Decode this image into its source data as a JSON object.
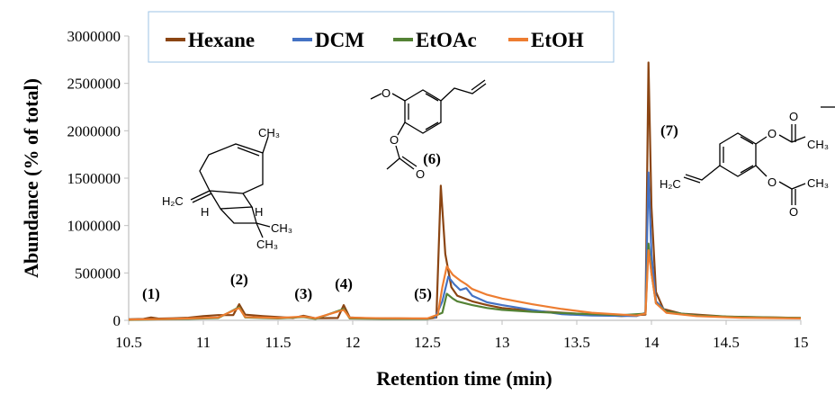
{
  "colors": {
    "Hexane": "#8B4513",
    "DCM": "#4472C4",
    "EtOAc": "#548235",
    "EtOH": "#ED7D31",
    "legend_border": "#9DC3E6",
    "axis": "#bfbfbf"
  },
  "chart_data": {
    "type": "line",
    "xlabel": "Retention time (min)",
    "ylabel": "Abundance (% of total)",
    "xlim": [
      10.5,
      15
    ],
    "ylim": [
      0,
      3000000
    ],
    "x_ticks": [
      "10.5",
      "11",
      "11.5",
      "12",
      "12.5",
      "13",
      "13.5",
      "14",
      "14.5",
      "15"
    ],
    "y_ticks": [
      "0",
      "500000",
      "1000000",
      "1500000",
      "2000000",
      "2500000",
      "3000000"
    ],
    "legend": {
      "position": "top",
      "entries": [
        "Hexane",
        "DCM",
        "EtOAc",
        "EtOH"
      ]
    },
    "series": [
      {
        "name": "Hexane",
        "color": "#8B4513",
        "points": [
          [
            10.5,
            10000
          ],
          [
            10.6,
            14000
          ],
          [
            10.65,
            30000
          ],
          [
            10.7,
            18000
          ],
          [
            10.8,
            22000
          ],
          [
            10.9,
            28000
          ],
          [
            11.0,
            45000
          ],
          [
            11.1,
            55000
          ],
          [
            11.2,
            55000
          ],
          [
            11.24,
            170000
          ],
          [
            11.28,
            60000
          ],
          [
            11.4,
            45000
          ],
          [
            11.6,
            25000
          ],
          [
            11.67,
            48000
          ],
          [
            11.75,
            22000
          ],
          [
            11.9,
            25000
          ],
          [
            11.94,
            160000
          ],
          [
            11.98,
            30000
          ],
          [
            12.1,
            22000
          ],
          [
            12.3,
            20000
          ],
          [
            12.5,
            16000
          ],
          [
            12.56,
            30000
          ],
          [
            12.59,
            1420000
          ],
          [
            12.62,
            700000
          ],
          [
            12.66,
            350000
          ],
          [
            12.7,
            260000
          ],
          [
            12.8,
            200000
          ],
          [
            12.9,
            160000
          ],
          [
            13.0,
            130000
          ],
          [
            13.2,
            100000
          ],
          [
            13.5,
            70000
          ],
          [
            13.8,
            45000
          ],
          [
            13.96,
            60000
          ],
          [
            13.98,
            2720000
          ],
          [
            14.0,
            1200000
          ],
          [
            14.03,
            300000
          ],
          [
            14.08,
            120000
          ],
          [
            14.2,
            70000
          ],
          [
            14.5,
            40000
          ],
          [
            15.0,
            25000
          ]
        ]
      },
      {
        "name": "DCM",
        "color": "#4472C4",
        "points": [
          [
            12.55,
            20000
          ],
          [
            12.6,
            200000
          ],
          [
            12.64,
            460000
          ],
          [
            12.68,
            380000
          ],
          [
            12.72,
            320000
          ],
          [
            12.76,
            340000
          ],
          [
            12.8,
            260000
          ],
          [
            12.9,
            190000
          ],
          [
            13.0,
            160000
          ],
          [
            13.2,
            110000
          ],
          [
            13.4,
            65000
          ],
          [
            13.6,
            50000
          ],
          [
            13.9,
            45000
          ],
          [
            13.96,
            80000
          ],
          [
            13.98,
            1560000
          ],
          [
            14.0,
            700000
          ],
          [
            14.03,
            200000
          ],
          [
            14.1,
            90000
          ],
          [
            14.3,
            50000
          ],
          [
            14.6,
            30000
          ],
          [
            15.0,
            22000
          ]
        ]
      },
      {
        "name": "EtOAc",
        "color": "#548235",
        "points": [
          [
            10.5,
            5000
          ],
          [
            10.7,
            10000
          ],
          [
            10.9,
            15000
          ],
          [
            11.1,
            25000
          ],
          [
            11.24,
            140000
          ],
          [
            11.28,
            30000
          ],
          [
            11.5,
            20000
          ],
          [
            11.67,
            35000
          ],
          [
            11.75,
            15000
          ],
          [
            11.94,
            120000
          ],
          [
            11.98,
            20000
          ],
          [
            12.2,
            15000
          ],
          [
            12.5,
            15000
          ],
          [
            12.6,
            80000
          ],
          [
            12.63,
            280000
          ],
          [
            12.67,
            230000
          ],
          [
            12.7,
            200000
          ],
          [
            12.8,
            160000
          ],
          [
            12.9,
            130000
          ],
          [
            13.0,
            110000
          ],
          [
            13.2,
            90000
          ],
          [
            13.5,
            70000
          ],
          [
            13.8,
            55000
          ],
          [
            13.96,
            70000
          ],
          [
            13.98,
            810000
          ],
          [
            14.0,
            500000
          ],
          [
            14.03,
            180000
          ],
          [
            14.1,
            90000
          ],
          [
            14.3,
            50000
          ],
          [
            14.6,
            35000
          ],
          [
            15.0,
            25000
          ]
        ]
      },
      {
        "name": "EtOH",
        "color": "#ED7D31",
        "points": [
          [
            10.5,
            8000
          ],
          [
            10.7,
            12000
          ],
          [
            10.9,
            20000
          ],
          [
            11.1,
            30000
          ],
          [
            11.24,
            130000
          ],
          [
            11.28,
            35000
          ],
          [
            11.5,
            25000
          ],
          [
            11.67,
            40000
          ],
          [
            11.75,
            22000
          ],
          [
            11.94,
            110000
          ],
          [
            11.98,
            28000
          ],
          [
            12.2,
            22000
          ],
          [
            12.5,
            20000
          ],
          [
            12.57,
            60000
          ],
          [
            12.6,
            350000
          ],
          [
            12.63,
            570000
          ],
          [
            12.67,
            480000
          ],
          [
            12.72,
            420000
          ],
          [
            12.76,
            380000
          ],
          [
            12.8,
            330000
          ],
          [
            12.9,
            270000
          ],
          [
            13.0,
            230000
          ],
          [
            13.2,
            170000
          ],
          [
            13.4,
            120000
          ],
          [
            13.6,
            80000
          ],
          [
            13.9,
            50000
          ],
          [
            13.96,
            70000
          ],
          [
            13.98,
            740000
          ],
          [
            14.0,
            500000
          ],
          [
            14.03,
            180000
          ],
          [
            14.1,
            80000
          ],
          [
            14.3,
            45000
          ],
          [
            14.6,
            28000
          ],
          [
            15.0,
            20000
          ]
        ]
      }
    ],
    "annotations": [
      {
        "text": "(1)",
        "x": 10.65,
        "y": 230000
      },
      {
        "text": "(2)",
        "x": 11.24,
        "y": 380000
      },
      {
        "text": "(3)",
        "x": 11.67,
        "y": 230000
      },
      {
        "text": "(4)",
        "x": 11.94,
        "y": 330000
      },
      {
        "text": "(5)",
        "x": 12.47,
        "y": 230000
      },
      {
        "text": "(6)",
        "x": 12.53,
        "y": 1650000
      },
      {
        "text": "(7)",
        "x": 14.12,
        "y": 1950000
      }
    ]
  },
  "structures": {
    "caryophyllene": {
      "h2c": "H₂C",
      "h_left": "H",
      "h_right": "H",
      "ch3_top": "CH₃",
      "ch3_a": "CH₃",
      "ch3_b": "CH₃"
    },
    "eugenyl_acetate": {
      "methoxy_o": "O",
      "ester_o": "O",
      "carbonyl_o": "O"
    },
    "diacetate": {
      "h2c": "H₂C",
      "o1": "O",
      "o2": "O",
      "ch3_1": "CH₃",
      "ch3_2": "CH₃",
      "co1": "O",
      "co2": "O"
    }
  }
}
